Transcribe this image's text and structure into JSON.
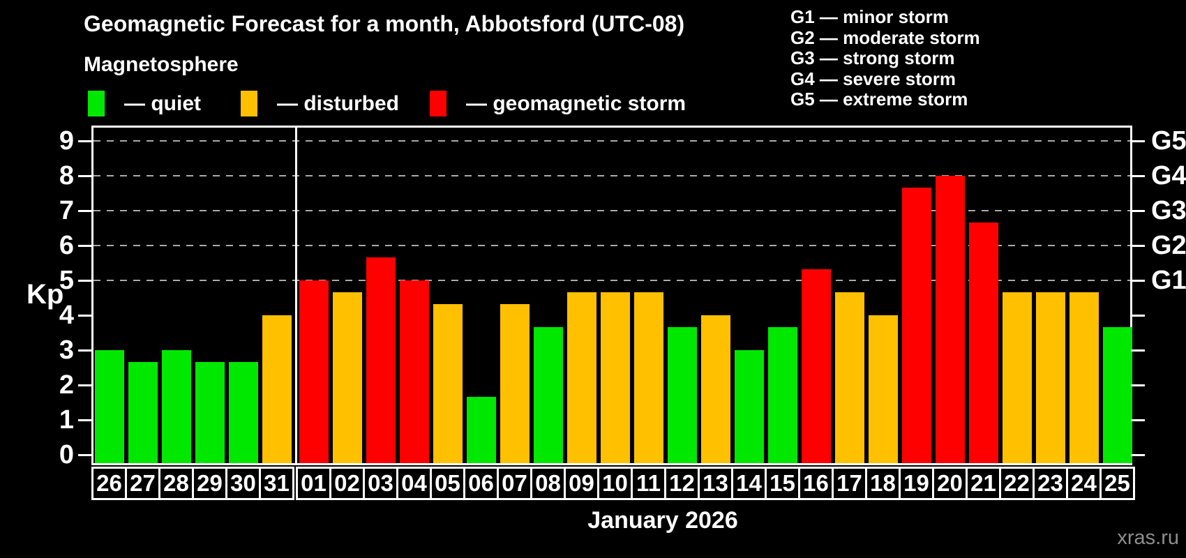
{
  "header": {
    "title": "Geomagnetic Forecast for a month, Abbotsford (UTC-08)",
    "subtitle": "Magnetosphere"
  },
  "legend": [
    {
      "key": "quiet",
      "label": "— quiet",
      "color": "#00e800"
    },
    {
      "key": "disturbed",
      "label": "— disturbed",
      "color": "#ffc000"
    },
    {
      "key": "storm",
      "label": "— geomagnetic storm",
      "color": "#ff0000"
    }
  ],
  "storm_scale_legend": [
    {
      "code": "G1",
      "label": "— minor storm"
    },
    {
      "code": "G2",
      "label": "— moderate storm"
    },
    {
      "code": "G3",
      "label": "— strong storm"
    },
    {
      "code": "G4",
      "label": "— severe storm"
    },
    {
      "code": "G5",
      "label": "— extreme storm"
    }
  ],
  "axis": {
    "ylabel": "Kp",
    "yticks": [
      0,
      1,
      2,
      3,
      4,
      5,
      6,
      7,
      8,
      9
    ],
    "g_levels": [
      {
        "label": "G1",
        "kp": 5
      },
      {
        "label": "G2",
        "kp": 6
      },
      {
        "label": "G3",
        "kp": 7
      },
      {
        "label": "G4",
        "kp": 8
      },
      {
        "label": "G5",
        "kp": 9
      }
    ],
    "xlabel": "January 2026"
  },
  "watermark": "xras.ru",
  "chart_data": {
    "type": "bar",
    "title": "Geomagnetic Forecast for a month, Abbotsford (UTC-08)",
    "ylabel": "Kp",
    "ylim": [
      0,
      9
    ],
    "gridlines_kp": [
      5,
      6,
      7,
      8,
      9
    ],
    "legend_position": "top-left",
    "categories": [
      "26",
      "27",
      "28",
      "29",
      "30",
      "31",
      "01",
      "02",
      "03",
      "04",
      "05",
      "06",
      "07",
      "08",
      "09",
      "10",
      "11",
      "12",
      "13",
      "14",
      "15",
      "16",
      "17",
      "18",
      "19",
      "20",
      "21",
      "22",
      "23",
      "24",
      "25"
    ],
    "values": [
      3,
      2.67,
      3,
      2.67,
      2.67,
      4,
      5,
      4.67,
      5.67,
      5,
      4.33,
      1.67,
      4.33,
      3.67,
      4.67,
      4.67,
      4.67,
      3.67,
      4,
      3,
      3.67,
      5.33,
      4.67,
      4,
      7.67,
      8,
      6.67,
      4.67,
      4.67,
      4.67,
      3.67
    ],
    "status": [
      "quiet",
      "quiet",
      "quiet",
      "quiet",
      "quiet",
      "disturbed",
      "storm",
      "disturbed",
      "storm",
      "storm",
      "disturbed",
      "quiet",
      "disturbed",
      "quiet",
      "disturbed",
      "disturbed",
      "disturbed",
      "quiet",
      "disturbed",
      "quiet",
      "quiet",
      "storm",
      "disturbed",
      "disturbed",
      "storm",
      "storm",
      "storm",
      "disturbed",
      "disturbed",
      "disturbed",
      "quiet"
    ],
    "colors": {
      "quiet": "#00e800",
      "disturbed": "#ffc000",
      "storm": "#ff0000"
    },
    "month_separator_after_index": 5
  }
}
